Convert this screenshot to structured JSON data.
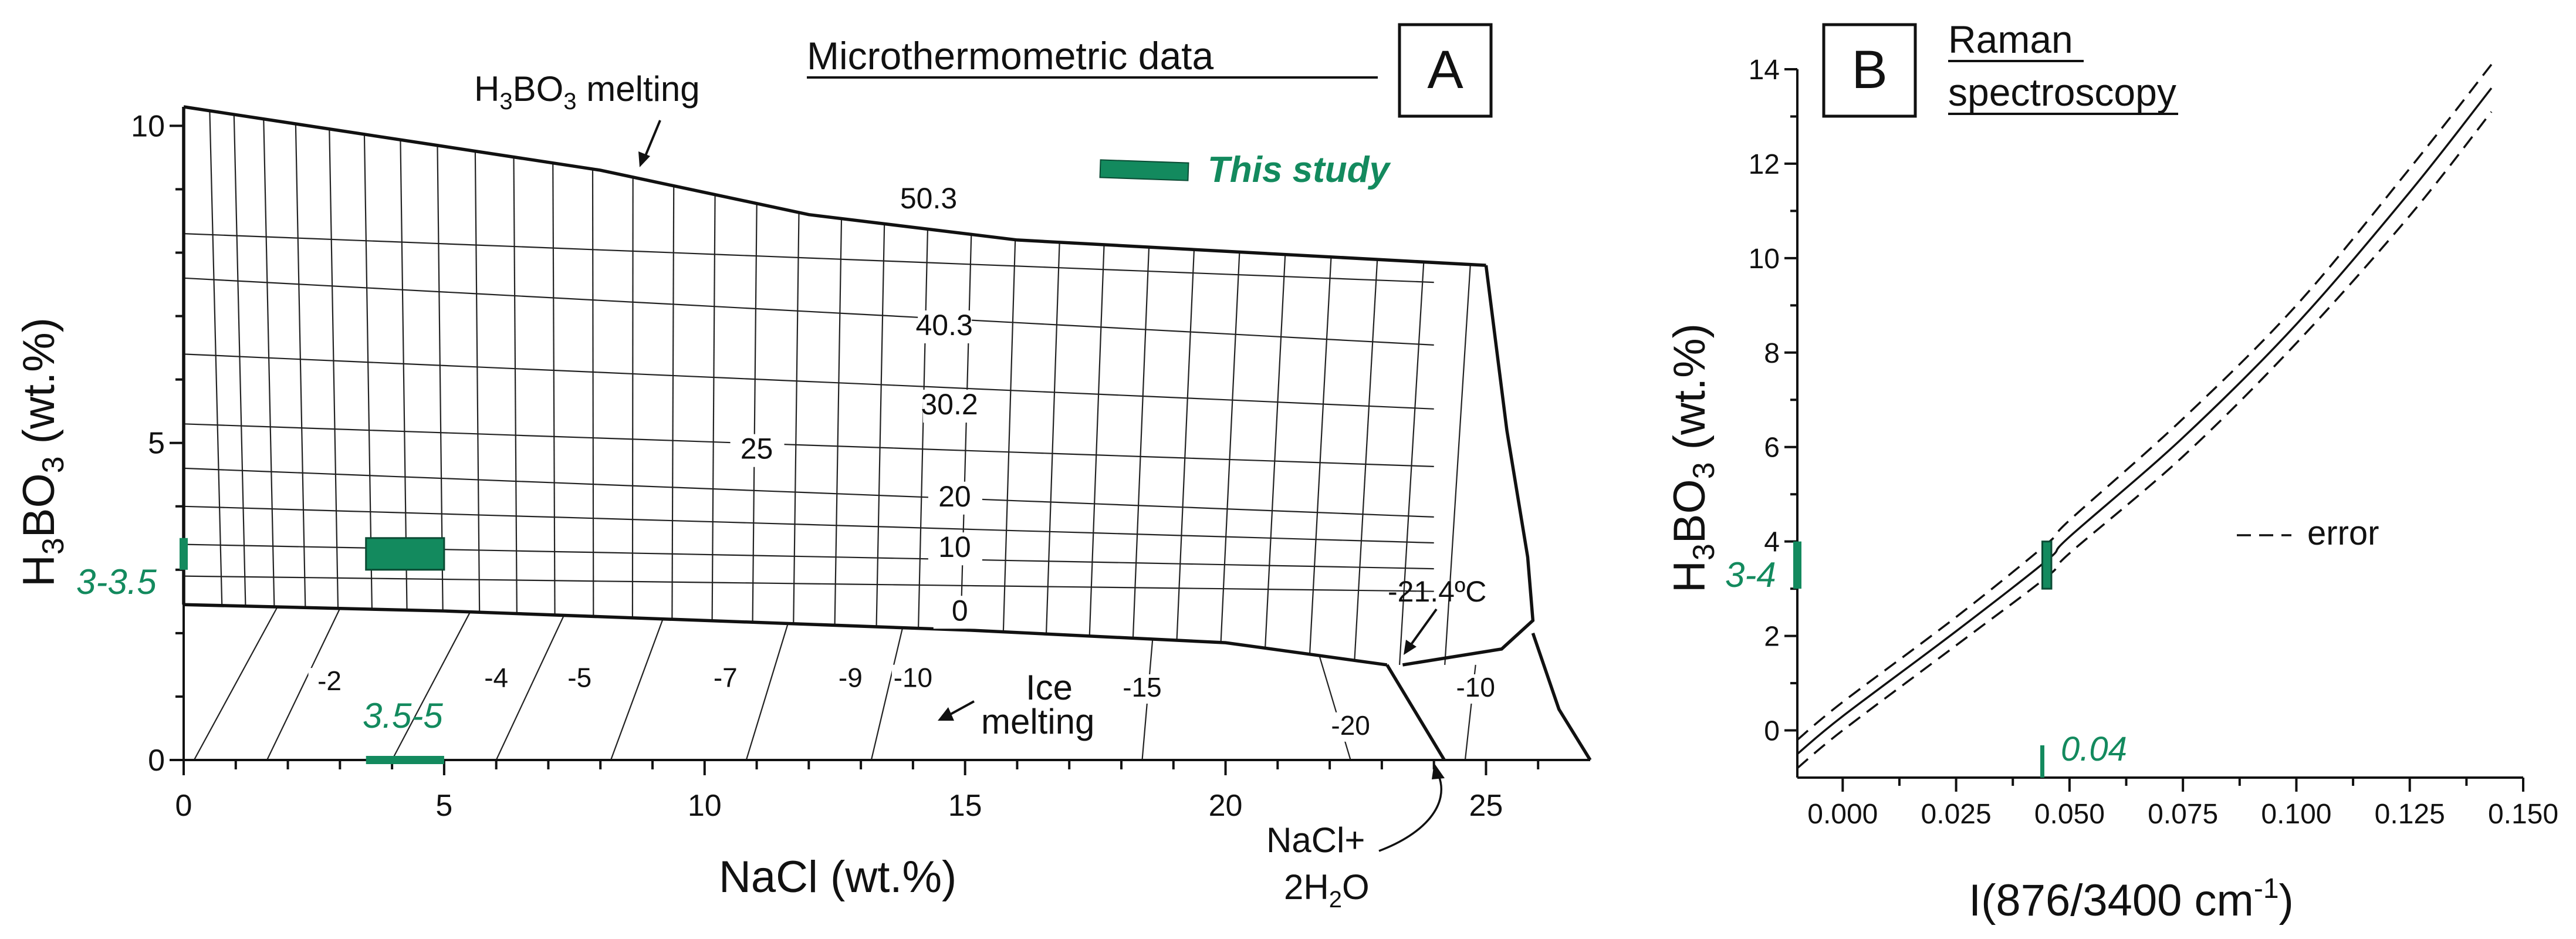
{
  "colors": {
    "accent": "#138a5e",
    "ink": "#111111"
  },
  "chart_data": [
    {
      "type": "scatter",
      "panel_letter": "A",
      "title": "Microthermometric data",
      "xlabel": "NaCl (wt.%)",
      "ylabel": "H",
      "ylabel_sub1": "3",
      "ylabel_mid": "BO",
      "ylabel_sub2": "3",
      "ylabel_tail": " (wt.%)",
      "xlim": [
        0,
        27
      ],
      "ylim": [
        0,
        10.3
      ],
      "xticks": [
        0,
        5,
        10,
        15,
        20,
        25
      ],
      "xtick_labels": [
        "0",
        "5",
        "10",
        "15",
        "20",
        "25"
      ],
      "yticks": [
        0,
        5,
        10
      ],
      "ytick_labels": [
        "0",
        "5",
        "10"
      ],
      "boundaries": {
        "top_h3bo3_saturation": [
          [
            0,
            10.3
          ],
          [
            8,
            9.3
          ],
          [
            12,
            8.6
          ],
          [
            16,
            8.2
          ],
          [
            25,
            7.8
          ]
        ],
        "ice_liquidus": [
          [
            0,
            2.45
          ],
          [
            5,
            2.35
          ],
          [
            10,
            2.2
          ],
          [
            15,
            2.05
          ],
          [
            20,
            1.85
          ],
          [
            23.1,
            1.5
          ]
        ],
        "right_boundary": [
          [
            25,
            7.8
          ],
          [
            25.4,
            5.2
          ],
          [
            25.8,
            3.2
          ],
          [
            25.9,
            2.2
          ],
          [
            25.3,
            1.75
          ],
          [
            23.4,
            1.5
          ]
        ],
        "hydrohalite_left": [
          [
            23.1,
            1.5
          ],
          [
            24.2,
            0
          ]
        ],
        "hydrohalite_right": [
          [
            25.9,
            2.0
          ],
          [
            26.4,
            0.8
          ],
          [
            27,
            0
          ]
        ]
      },
      "isotherms_label": [
        "50.3",
        "40.3",
        "30.2",
        "25",
        "20",
        "10",
        "0"
      ],
      "ice_melting_labels": [
        "-2",
        "-4",
        "-5",
        "-7",
        "-9",
        "-10",
        "-15",
        "-20",
        "-10"
      ],
      "annotations": {
        "h3bo3_melting": "H3BO3 melting",
        "h3bo3_melting_parts": [
          "H",
          "3",
          "BO",
          "3",
          " melting"
        ],
        "ice_melting_1": "Ice",
        "ice_melting_2": "melting",
        "eutectic": "-21.4ºC",
        "nacl_1": "NaCl+",
        "nacl_2": "2H",
        "nacl_2_sub": "2",
        "nacl_2_tail": "O",
        "legend": "This study",
        "range_y": "3-3.5",
        "range_x": "3.5-5"
      },
      "this_study_box": {
        "x": [
          3.5,
          5.0
        ],
        "y": [
          3.0,
          3.5
        ]
      }
    },
    {
      "type": "line",
      "panel_letter": "B",
      "title_1": "Raman",
      "title_2": "spectroscopy",
      "xlabel": "I(876/3400 cm",
      "xlabel_sup": "-1",
      "xlabel_tail": ")",
      "ylabel": "H",
      "ylabel_sub1": "3",
      "ylabel_mid": "BO",
      "ylabel_sub2": "3",
      "ylabel_tail": " (wt.%)",
      "xlim": [
        -0.01,
        0.15
      ],
      "ylim": [
        -1,
        14
      ],
      "xticks": [
        0.0,
        0.025,
        0.05,
        0.075,
        0.1,
        0.125,
        0.15
      ],
      "xtick_labels": [
        "0.000",
        "0.025",
        "0.050",
        "0.075",
        "0.100",
        "0.125",
        "0.150"
      ],
      "yticks": [
        0,
        2,
        4,
        6,
        8,
        10,
        12,
        14
      ],
      "ytick_labels": [
        "0",
        "2",
        "4",
        "6",
        "8",
        "10",
        "12",
        "14"
      ],
      "series": [
        {
          "name": "fit",
          "x": [
            -0.01,
            0.0,
            0.025,
            0.045,
            0.05,
            0.075,
            0.1,
            0.125,
            0.143
          ],
          "y": [
            -0.5,
            0.3,
            2.1,
            3.6,
            4.1,
            6.2,
            8.6,
            11.4,
            13.6
          ]
        },
        {
          "name": "error",
          "x": [
            -0.01,
            0.0,
            0.025,
            0.045,
            0.05,
            0.075,
            0.1,
            0.125,
            0.143
          ],
          "y": [
            -0.2,
            0.6,
            2.4,
            3.95,
            4.45,
            6.6,
            9.0,
            11.9,
            14.1
          ]
        },
        {
          "name": "error",
          "x": [
            -0.01,
            0.0,
            0.025,
            0.045,
            0.05,
            0.075,
            0.1,
            0.125,
            0.143
          ],
          "y": [
            -0.8,
            0.0,
            1.8,
            3.25,
            3.75,
            5.8,
            8.2,
            10.9,
            13.1
          ]
        }
      ],
      "legend": "error",
      "this_study_box": {
        "x": [
          0.044,
          0.046
        ],
        "y": [
          3.0,
          4.0
        ]
      },
      "annotations": {
        "range_y": "3-4",
        "value_x": "0.04"
      }
    }
  ]
}
